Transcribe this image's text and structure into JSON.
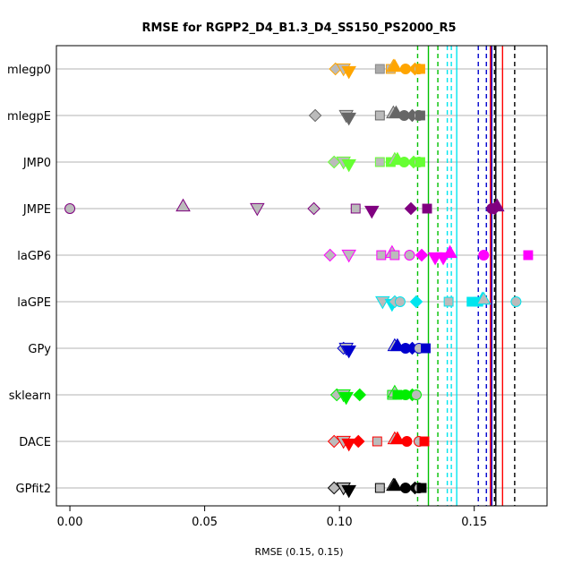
{
  "chart_data": {
    "type": "scatter",
    "title": "RMSE for RGPP2_D4_B1.3_D4_SS150_PS2000_R5",
    "xlabel": "RMSE (0.15, 0.15)",
    "xlim": [
      -0.005,
      0.177
    ],
    "x_ticks": [
      0,
      0.05,
      0.1,
      0.15
    ],
    "x_tick_labels": [
      "0.00",
      "0.05",
      "0.10",
      "0.15"
    ],
    "grid": "horizontal",
    "categories": [
      "mlegp0",
      "mlegpE",
      "JMP0",
      "JMPE",
      "laGP6",
      "laGPE",
      "GPy",
      "sklearn",
      "DACE",
      "GPfit2"
    ],
    "vlines": [
      {
        "x": 0.129,
        "color": "#00c000",
        "style": "dashed"
      },
      {
        "x": 0.133,
        "color": "#00c000",
        "style": "solid"
      },
      {
        "x": 0.1365,
        "color": "#00c000",
        "style": "dashed"
      },
      {
        "x": 0.14,
        "color": "#00e5ee",
        "style": "dashed"
      },
      {
        "x": 0.1415,
        "color": "#00e5ee",
        "style": "dashed"
      },
      {
        "x": 0.1435,
        "color": "#00e5ee",
        "style": "solid"
      },
      {
        "x": 0.1515,
        "color": "#0000cd",
        "style": "dashed"
      },
      {
        "x": 0.1545,
        "color": "#0000cd",
        "style": "dashed"
      },
      {
        "x": 0.156,
        "color": "#ff0000",
        "style": "solid"
      },
      {
        "x": 0.1565,
        "color": "#0000cd",
        "style": "solid"
      },
      {
        "x": 0.1575,
        "color": "#000000",
        "style": "dashed"
      },
      {
        "x": 0.158,
        "color": "#000000",
        "style": "solid"
      },
      {
        "x": 0.1605,
        "color": "#ff0000",
        "style": "solid"
      },
      {
        "x": 0.165,
        "color": "#000000",
        "style": "dashed"
      }
    ],
    "series": [
      {
        "row": "mlegp0",
        "color": "#ffa500",
        "light": "#ffcc66",
        "points": [
          {
            "x": 0.0985,
            "shape": "diamond",
            "fill": "light"
          },
          {
            "x": 0.1015,
            "shape": "triangle-down",
            "fill": "light"
          },
          {
            "x": 0.1035,
            "shape": "triangle-down",
            "fill": "solid"
          },
          {
            "x": 0.115,
            "shape": "square",
            "fill": "grey"
          },
          {
            "x": 0.119,
            "shape": "square",
            "fill": "light"
          },
          {
            "x": 0.12,
            "shape": "triangle-up",
            "fill": "light"
          },
          {
            "x": 0.1205,
            "shape": "triangle-up",
            "fill": "solid"
          },
          {
            "x": 0.1245,
            "shape": "circle",
            "fill": "solid"
          },
          {
            "x": 0.128,
            "shape": "diamond",
            "fill": "solid"
          },
          {
            "x": 0.1295,
            "shape": "circle",
            "fill": "light"
          },
          {
            "x": 0.13,
            "shape": "square",
            "fill": "solid"
          }
        ]
      },
      {
        "row": "mlegpE",
        "color": "#666666",
        "light": "#aaaaaa",
        "points": [
          {
            "x": 0.091,
            "shape": "diamond",
            "fill": "light"
          },
          {
            "x": 0.1025,
            "shape": "triangle-down",
            "fill": "light"
          },
          {
            "x": 0.1035,
            "shape": "triangle-down",
            "fill": "solid"
          },
          {
            "x": 0.115,
            "shape": "square",
            "fill": "light"
          },
          {
            "x": 0.12,
            "shape": "triangle-up",
            "fill": "light"
          },
          {
            "x": 0.121,
            "shape": "triangle-up",
            "fill": "solid"
          },
          {
            "x": 0.124,
            "shape": "circle",
            "fill": "solid"
          },
          {
            "x": 0.127,
            "shape": "diamond",
            "fill": "solid"
          },
          {
            "x": 0.1295,
            "shape": "circle",
            "fill": "light"
          },
          {
            "x": 0.13,
            "shape": "square",
            "fill": "solid"
          }
        ]
      },
      {
        "row": "JMP0",
        "color": "#66ff33",
        "light": "#b3ff99",
        "points": [
          {
            "x": 0.098,
            "shape": "diamond",
            "fill": "light"
          },
          {
            "x": 0.1015,
            "shape": "triangle-down",
            "fill": "light"
          },
          {
            "x": 0.1035,
            "shape": "triangle-down",
            "fill": "solid"
          },
          {
            "x": 0.115,
            "shape": "square",
            "fill": "light"
          },
          {
            "x": 0.119,
            "shape": "square",
            "fill": "solid"
          },
          {
            "x": 0.1205,
            "shape": "triangle-up",
            "fill": "light"
          },
          {
            "x": 0.1215,
            "shape": "triangle-up",
            "fill": "solid"
          },
          {
            "x": 0.124,
            "shape": "circle",
            "fill": "solid"
          },
          {
            "x": 0.1275,
            "shape": "diamond",
            "fill": "solid"
          },
          {
            "x": 0.1295,
            "shape": "circle",
            "fill": "light"
          },
          {
            "x": 0.13,
            "shape": "square",
            "fill": "solid"
          }
        ]
      },
      {
        "row": "JMPE",
        "color": "#800080",
        "light": "#c080c0",
        "points": [
          {
            "x": 0.0,
            "shape": "circle",
            "fill": "light"
          },
          {
            "x": 0.042,
            "shape": "triangle-up",
            "fill": "light"
          },
          {
            "x": 0.0695,
            "shape": "triangle-down",
            "fill": "light"
          },
          {
            "x": 0.0905,
            "shape": "diamond",
            "fill": "light"
          },
          {
            "x": 0.106,
            "shape": "square",
            "fill": "light"
          },
          {
            "x": 0.112,
            "shape": "triangle-down",
            "fill": "solid"
          },
          {
            "x": 0.1265,
            "shape": "diamond",
            "fill": "solid"
          },
          {
            "x": 0.1325,
            "shape": "square",
            "fill": "solid"
          },
          {
            "x": 0.1565,
            "shape": "circle",
            "fill": "solid"
          },
          {
            "x": 0.1575,
            "shape": "diamond",
            "fill": "solid"
          },
          {
            "x": 0.1585,
            "shape": "triangle-up",
            "fill": "solid"
          }
        ]
      },
      {
        "row": "laGP6",
        "color": "#ff00ff",
        "light": "#ff99ff",
        "points": [
          {
            "x": 0.0965,
            "shape": "diamond",
            "fill": "light"
          },
          {
            "x": 0.1035,
            "shape": "triangle-down",
            "fill": "light"
          },
          {
            "x": 0.1155,
            "shape": "square",
            "fill": "light"
          },
          {
            "x": 0.1195,
            "shape": "triangle-up",
            "fill": "light"
          },
          {
            "x": 0.1205,
            "shape": "square",
            "fill": "light"
          },
          {
            "x": 0.126,
            "shape": "circle",
            "fill": "light"
          },
          {
            "x": 0.1305,
            "shape": "diamond",
            "fill": "solid"
          },
          {
            "x": 0.1355,
            "shape": "triangle-down",
            "fill": "solid"
          },
          {
            "x": 0.1385,
            "shape": "triangle-down",
            "fill": "solid"
          },
          {
            "x": 0.141,
            "shape": "triangle-up",
            "fill": "solid"
          },
          {
            "x": 0.1535,
            "shape": "circle",
            "fill": "solid"
          },
          {
            "x": 0.17,
            "shape": "square",
            "fill": "solid"
          }
        ]
      },
      {
        "row": "laGPE",
        "color": "#00e5ee",
        "light": "#99c9cc",
        "points": [
          {
            "x": 0.116,
            "shape": "triangle-down",
            "fill": "light"
          },
          {
            "x": 0.1195,
            "shape": "triangle-down",
            "fill": "solid"
          },
          {
            "x": 0.1205,
            "shape": "diamond",
            "fill": "light"
          },
          {
            "x": 0.1225,
            "shape": "circle",
            "fill": "light"
          },
          {
            "x": 0.1285,
            "shape": "diamond",
            "fill": "solid"
          },
          {
            "x": 0.1405,
            "shape": "square",
            "fill": "light"
          },
          {
            "x": 0.149,
            "shape": "square",
            "fill": "solid"
          },
          {
            "x": 0.1515,
            "shape": "square",
            "fill": "solid"
          },
          {
            "x": 0.153,
            "shape": "triangle-up",
            "fill": "solid"
          },
          {
            "x": 0.1535,
            "shape": "triangle-up",
            "fill": "light"
          },
          {
            "x": 0.1655,
            "shape": "circle",
            "fill": "light"
          }
        ]
      },
      {
        "row": "GPy",
        "color": "#0000cd",
        "light": "#9999ee",
        "points": [
          {
            "x": 0.1015,
            "shape": "diamond",
            "fill": "light"
          },
          {
            "x": 0.1025,
            "shape": "triangle-down",
            "fill": "light"
          },
          {
            "x": 0.1035,
            "shape": "triangle-down",
            "fill": "solid"
          },
          {
            "x": 0.1205,
            "shape": "triangle-up",
            "fill": "light"
          },
          {
            "x": 0.1215,
            "shape": "triangle-up",
            "fill": "solid"
          },
          {
            "x": 0.1245,
            "shape": "circle",
            "fill": "solid"
          },
          {
            "x": 0.127,
            "shape": "diamond",
            "fill": "solid"
          },
          {
            "x": 0.1295,
            "shape": "circle",
            "fill": "light"
          },
          {
            "x": 0.132,
            "shape": "square",
            "fill": "solid"
          }
        ]
      },
      {
        "row": "sklearn",
        "color": "#00ee00",
        "light": "#99ff99",
        "points": [
          {
            "x": 0.099,
            "shape": "diamond",
            "fill": "light"
          },
          {
            "x": 0.1015,
            "shape": "triangle-down",
            "fill": "light"
          },
          {
            "x": 0.1025,
            "shape": "triangle-down",
            "fill": "solid"
          },
          {
            "x": 0.1075,
            "shape": "diamond",
            "fill": "solid"
          },
          {
            "x": 0.1195,
            "shape": "square",
            "fill": "light"
          },
          {
            "x": 0.1205,
            "shape": "triangle-up",
            "fill": "light"
          },
          {
            "x": 0.1215,
            "shape": "square",
            "fill": "solid"
          },
          {
            "x": 0.1245,
            "shape": "circle",
            "fill": "solid"
          },
          {
            "x": 0.127,
            "shape": "diamond",
            "fill": "solid"
          },
          {
            "x": 0.1285,
            "shape": "circle",
            "fill": "light"
          }
        ]
      },
      {
        "row": "DACE",
        "color": "#ff0000",
        "light": "#ee9999",
        "points": [
          {
            "x": 0.098,
            "shape": "diamond",
            "fill": "light"
          },
          {
            "x": 0.1015,
            "shape": "triangle-down",
            "fill": "light"
          },
          {
            "x": 0.1035,
            "shape": "triangle-down",
            "fill": "solid"
          },
          {
            "x": 0.107,
            "shape": "diamond",
            "fill": "solid"
          },
          {
            "x": 0.114,
            "shape": "square",
            "fill": "light"
          },
          {
            "x": 0.1205,
            "shape": "triangle-up",
            "fill": "light"
          },
          {
            "x": 0.1215,
            "shape": "triangle-up",
            "fill": "solid"
          },
          {
            "x": 0.125,
            "shape": "circle",
            "fill": "solid"
          },
          {
            "x": 0.1295,
            "shape": "circle",
            "fill": "light"
          },
          {
            "x": 0.1315,
            "shape": "square",
            "fill": "solid"
          }
        ]
      },
      {
        "row": "GPfit2",
        "color": "#000000",
        "light": "#aaaaaa",
        "points": [
          {
            "x": 0.098,
            "shape": "diamond",
            "fill": "light"
          },
          {
            "x": 0.1015,
            "shape": "triangle-down",
            "fill": "light"
          },
          {
            "x": 0.1035,
            "shape": "triangle-down",
            "fill": "solid"
          },
          {
            "x": 0.115,
            "shape": "square",
            "fill": "light"
          },
          {
            "x": 0.12,
            "shape": "triangle-up",
            "fill": "light"
          },
          {
            "x": 0.1205,
            "shape": "triangle-up",
            "fill": "solid"
          },
          {
            "x": 0.1245,
            "shape": "circle",
            "fill": "solid"
          },
          {
            "x": 0.128,
            "shape": "diamond",
            "fill": "solid"
          },
          {
            "x": 0.1295,
            "shape": "circle",
            "fill": "light"
          },
          {
            "x": 0.1305,
            "shape": "square",
            "fill": "solid"
          }
        ]
      }
    ]
  }
}
